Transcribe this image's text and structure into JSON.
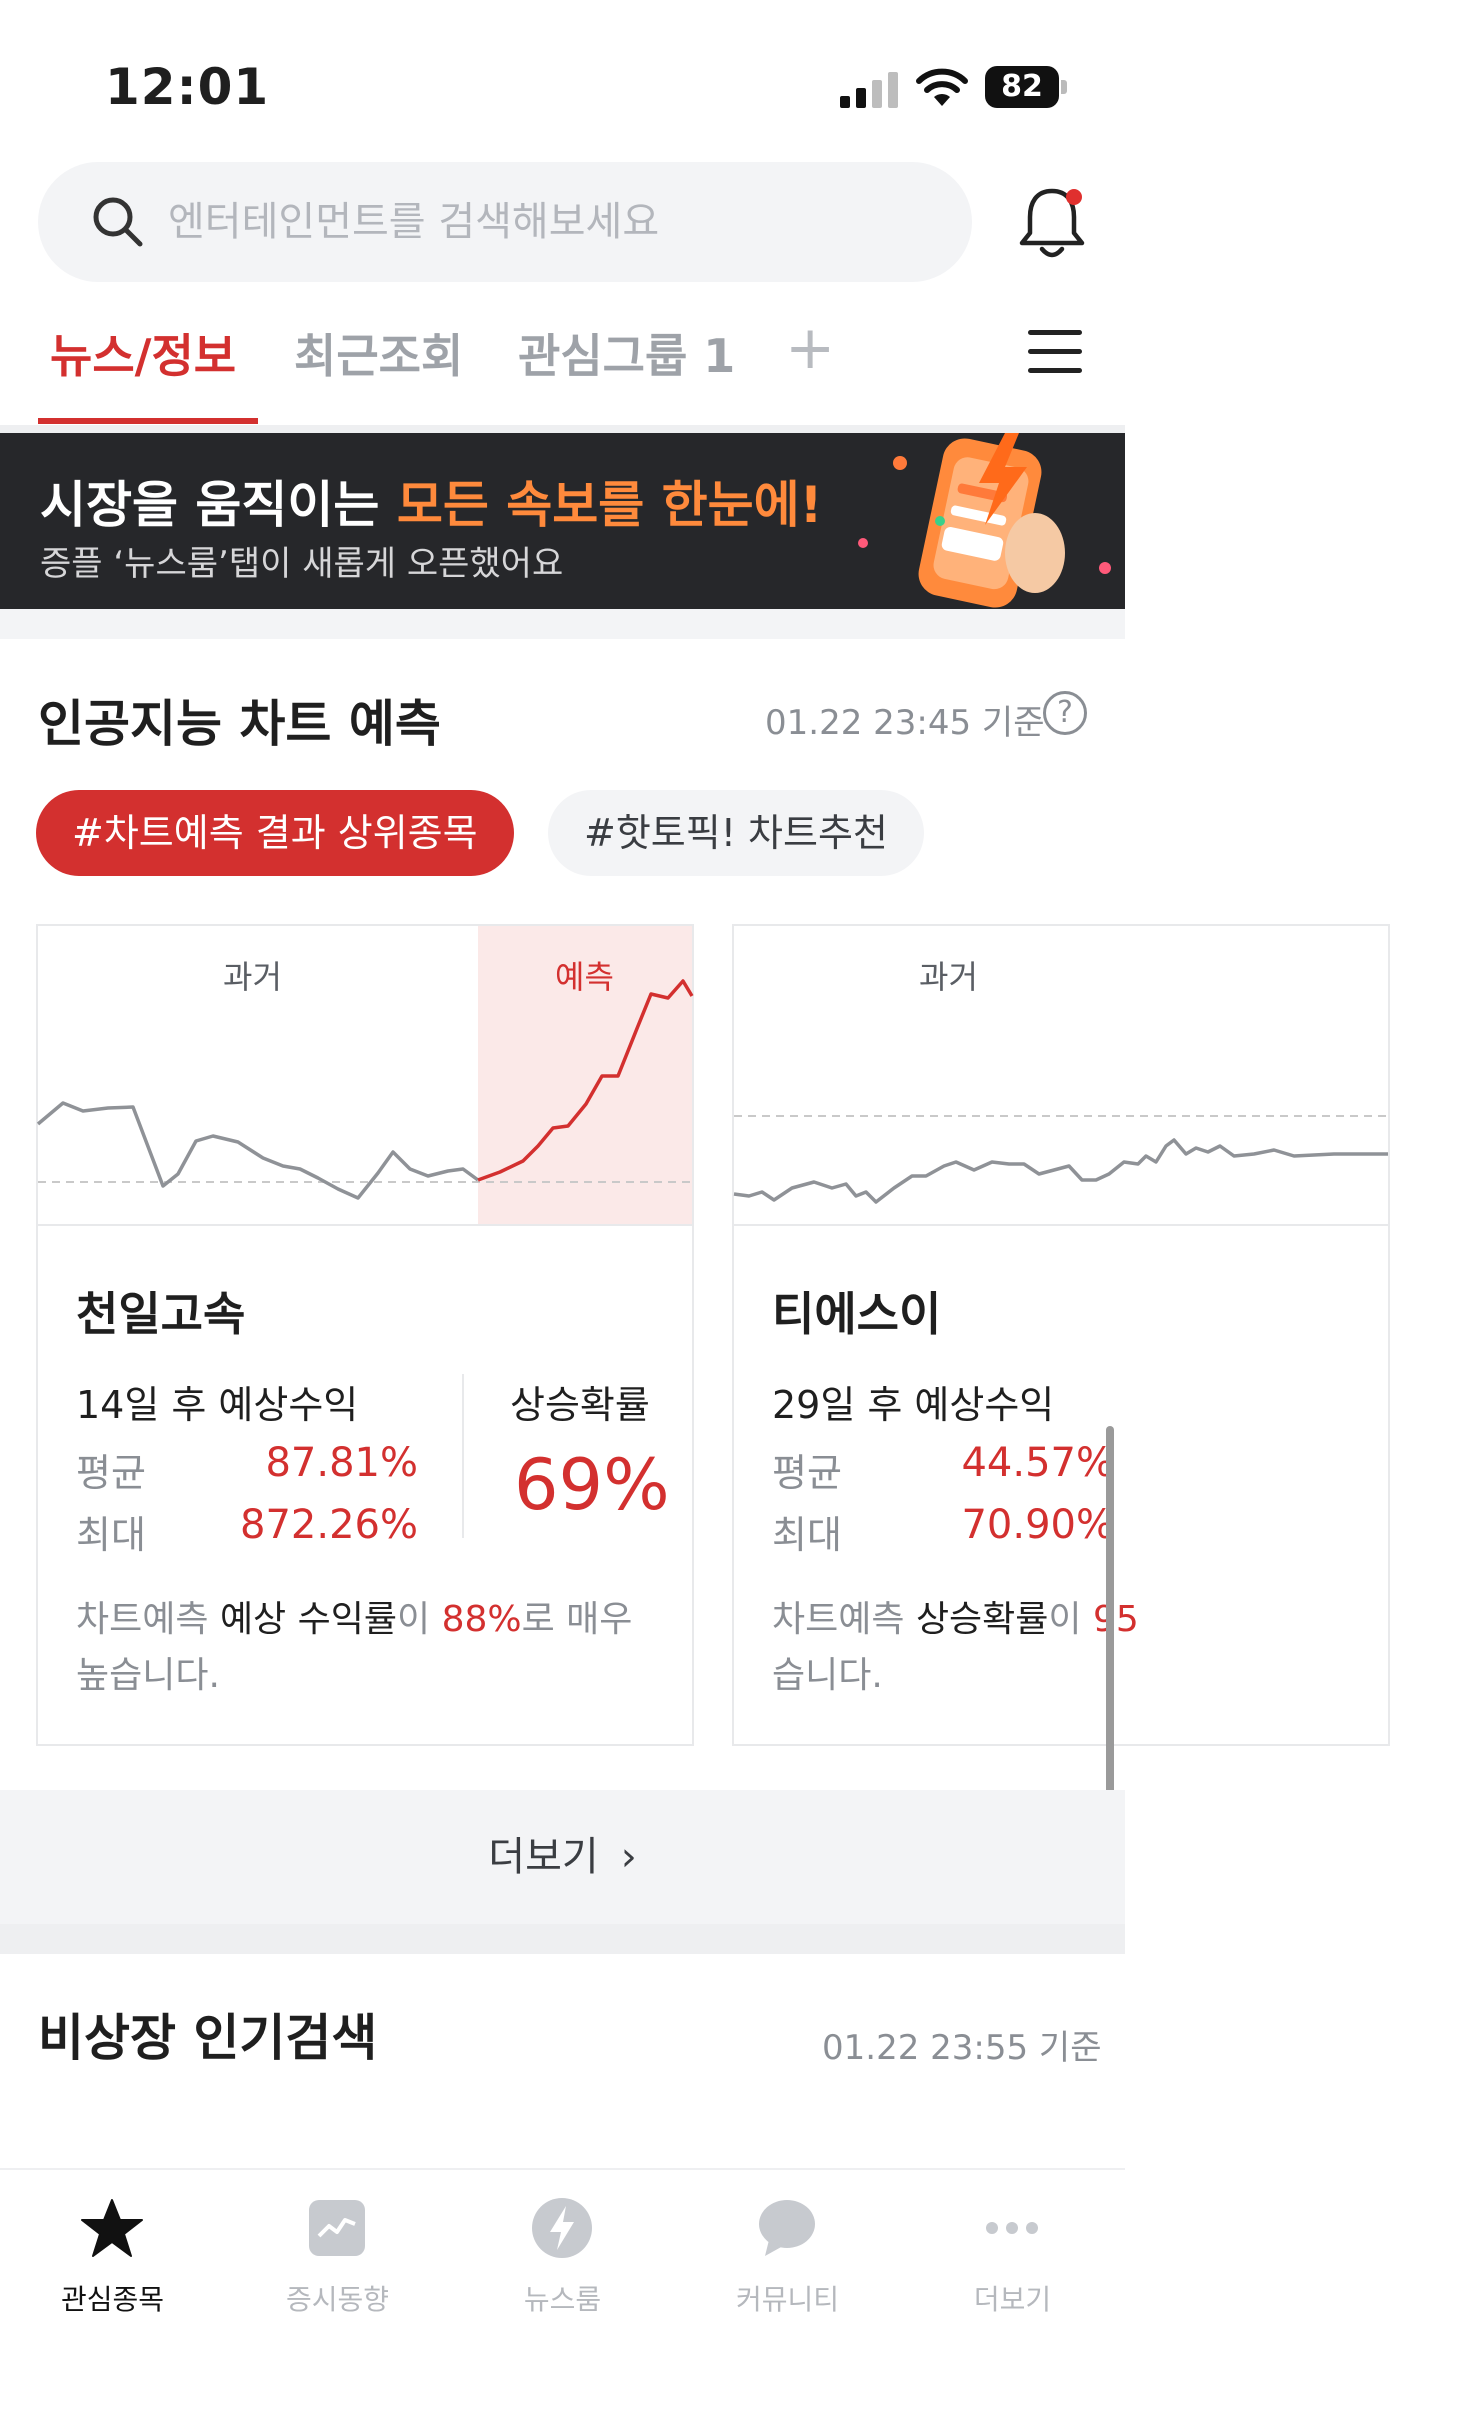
{
  "status_bar": {
    "time": "12:01",
    "battery": "82"
  },
  "search": {
    "placeholder": "엔터테인먼트를 검색해보세요"
  },
  "tabs": [
    {
      "label": "뉴스/정보",
      "active": true
    },
    {
      "label": "최근조회",
      "active": false
    },
    {
      "label": "관심그룹 1",
      "active": false
    }
  ],
  "banner": {
    "title_prefix": "시장을 움직이는 ",
    "title_highlight": "모든 속보를 한눈에!",
    "subtitle": "증플 ‘뉴스룸’탭이 새롭게 오픈했어요"
  },
  "ai_section": {
    "title": "인공지능 차트 예측",
    "timestamp": "01.22 23:45 기준",
    "help": "?",
    "chips": [
      "#차트예측 결과 상위종목",
      "#핫토픽! 차트추천"
    ],
    "cards": [
      {
        "past_label": "과거",
        "pred_label": "예측",
        "name": "천일고속",
        "return_label": "14일 후 예상수익",
        "avg_label": "평균",
        "avg_value": "87.81%",
        "max_label": "최대",
        "max_value": "872.26%",
        "prob_label": "상승확률",
        "prob_value": "69%",
        "desc_a": "차트예측 ",
        "desc_b": "예상 수익률",
        "desc_c": "이 ",
        "desc_d": "88%",
        "desc_e": "로 매우 높습니다."
      },
      {
        "past_label": "과거",
        "name": "티에스이",
        "return_label": "29일 후 예상수익",
        "avg_label": "평균",
        "avg_value": "44.57%",
        "max_label": "최대",
        "max_value": "70.90%",
        "desc_a": "차트예측 ",
        "desc_b": "상승확률",
        "desc_c": "이 ",
        "desc_d": "95",
        "desc_e": "습니다."
      }
    ],
    "more_label": "더보기",
    "more_chevron": "›"
  },
  "otc_section": {
    "title": "비상장 인기검색",
    "timestamp": "01.22 23:55 기준"
  },
  "bottom_nav": [
    {
      "label": "관심종목",
      "icon": "star-icon",
      "active": true
    },
    {
      "label": "증시동향",
      "icon": "market-chart-icon",
      "active": false
    },
    {
      "label": "뉴스룸",
      "icon": "bolt-icon",
      "active": false
    },
    {
      "label": "커뮤니티",
      "icon": "chat-bubble-icon",
      "active": false
    },
    {
      "label": "더보기",
      "icon": "more-dots-icon",
      "active": false
    }
  ],
  "colors": {
    "accent": "#d3302f",
    "banner_highlight": "#ff8a3c",
    "banner_bg": "#26272a",
    "muted": "#8a8e94"
  }
}
